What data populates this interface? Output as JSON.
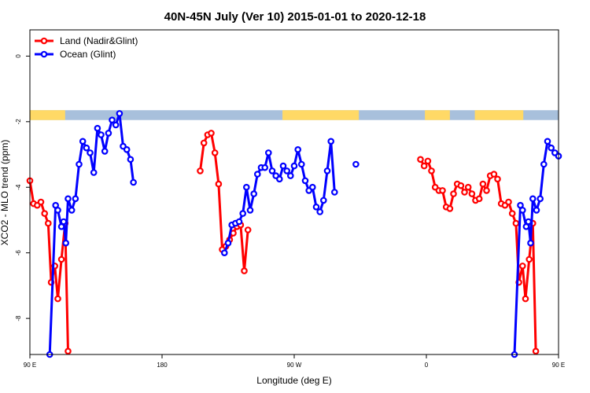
{
  "chart_data": {
    "type": "line",
    "title": "40N-45N July (Ver 10)   2015-01-01 to 2020-12-18",
    "xlabel": "Longitude (deg E)",
    "ylabel": "XCO2 - MLO trend (ppm)",
    "xlim": [
      90,
      450
    ],
    "ylim": [
      -9.1,
      0.8
    ],
    "x_ticks": [
      {
        "value": 90,
        "label": "90 E"
      },
      {
        "value": 180,
        "label": "180"
      },
      {
        "value": 270,
        "label": "90 W"
      },
      {
        "value": 360,
        "label": "0"
      },
      {
        "value": 450,
        "label": "90 E"
      },
      {
        "value": 540,
        "label": "180"
      }
    ],
    "y_ticks": [
      {
        "value": 0,
        "label": "0"
      },
      {
        "value": -2,
        "label": "-2"
      },
      {
        "value": -4,
        "label": "-4"
      },
      {
        "value": -6,
        "label": "-6"
      },
      {
        "value": -8,
        "label": "-8"
      }
    ],
    "grid": false,
    "legend_position": "top-left",
    "land_mask_band": {
      "y_range": [
        -1.65,
        -1.95
      ],
      "land_color": "#FFD966",
      "ocean_color": "#A8C0DC",
      "land_ranges": [
        [
          90,
          114
        ],
        [
          262,
          314
        ],
        [
          359,
          376
        ],
        [
          393,
          426
        ],
        [
          464,
          538
        ]
      ]
    },
    "series": [
      {
        "name": "Land (Nadir&Glint)",
        "color": "#FF0000",
        "points": [
          [
            90,
            -3.8
          ],
          [
            92.5,
            -4.5
          ],
          [
            95,
            -4.55
          ],
          [
            97.5,
            -4.45
          ],
          [
            100,
            -4.8
          ],
          [
            102.5,
            -5.1
          ],
          [
            104.5,
            -6.9
          ],
          [
            107,
            -6.4
          ],
          [
            109,
            -7.4
          ],
          [
            111.5,
            -6.2
          ],
          [
            114,
            -5.1
          ],
          [
            116,
            -9.0
          ],
          null,
          [
            206,
            -3.5
          ],
          [
            208.5,
            -2.65
          ],
          [
            211,
            -2.4
          ],
          [
            213.5,
            -2.35
          ],
          [
            216,
            -2.95
          ],
          [
            218.5,
            -3.9
          ],
          [
            221,
            -5.9
          ],
          [
            223.5,
            -5.8
          ],
          [
            226,
            -5.6
          ],
          [
            228.5,
            -5.4
          ],
          [
            231,
            -5.2
          ],
          [
            233.5,
            -5.15
          ],
          [
            236,
            -6.55
          ],
          [
            238.5,
            -5.3
          ],
          null,
          [
            356,
            -3.15
          ],
          [
            358.5,
            -3.35
          ],
          [
            361,
            -3.2
          ],
          [
            363.5,
            -3.5
          ],
          [
            366,
            -4.0
          ],
          [
            368.5,
            -4.1
          ],
          [
            371,
            -4.1
          ],
          [
            373.5,
            -4.6
          ],
          [
            376,
            -4.65
          ],
          [
            378.5,
            -4.2
          ],
          [
            381,
            -3.9
          ],
          [
            383.5,
            -3.95
          ],
          [
            386,
            -4.15
          ],
          [
            388.5,
            -4.0
          ],
          [
            391,
            -4.2
          ],
          [
            393.5,
            -4.4
          ],
          [
            396,
            -4.35
          ],
          [
            398.5,
            -3.9
          ],
          [
            401,
            -4.1
          ],
          [
            403.5,
            -3.65
          ],
          [
            406,
            -3.6
          ],
          [
            408.5,
            -3.75
          ],
          [
            411,
            -4.5
          ],
          [
            413.5,
            -4.55
          ],
          [
            416,
            -4.45
          ],
          [
            418.5,
            -4.8
          ],
          [
            421,
            -5.1
          ],
          [
            423,
            -6.9
          ],
          [
            425.5,
            -6.4
          ],
          [
            427.5,
            -7.4
          ],
          [
            430,
            -6.2
          ],
          [
            432.5,
            -5.1
          ],
          [
            434.5,
            -9.0
          ]
        ]
      },
      {
        "name": "Ocean (Glint)",
        "color": "#0000FF",
        "points": [
          [
            103.5,
            -9.1
          ],
          [
            107.5,
            -4.55
          ],
          [
            109,
            -4.7
          ],
          [
            111.5,
            -5.2
          ],
          [
            113,
            -5.05
          ],
          [
            114.5,
            -5.7
          ],
          [
            116,
            -4.35
          ],
          [
            118.5,
            -4.7
          ],
          [
            121,
            -4.35
          ],
          [
            123.5,
            -3.3
          ],
          [
            126,
            -2.6
          ],
          [
            128.5,
            -2.8
          ],
          [
            131,
            -2.95
          ],
          [
            133.5,
            -3.55
          ],
          [
            136,
            -2.2
          ],
          [
            138.5,
            -2.4
          ],
          [
            141,
            -2.9
          ],
          [
            143.5,
            -2.35
          ],
          [
            146,
            -1.95
          ],
          [
            148.5,
            -2.1
          ],
          [
            151,
            -1.75
          ],
          [
            153.5,
            -2.75
          ],
          [
            156,
            -2.85
          ],
          [
            158.5,
            -3.15
          ],
          [
            160.5,
            -3.85
          ],
          null,
          [
            222.5,
            -6.0
          ],
          [
            225,
            -5.7
          ],
          [
            227.5,
            -5.15
          ],
          [
            230,
            -5.1
          ],
          [
            232.5,
            -5.05
          ],
          [
            235,
            -4.8
          ],
          [
            237.5,
            -4.0
          ],
          [
            240,
            -4.7
          ],
          [
            242.5,
            -4.2
          ],
          [
            245,
            -3.6
          ],
          [
            247.5,
            -3.4
          ],
          [
            250,
            -3.4
          ],
          [
            252.5,
            -2.95
          ],
          [
            255,
            -3.5
          ],
          [
            257.5,
            -3.65
          ],
          [
            260,
            -3.75
          ],
          [
            262.5,
            -3.35
          ],
          [
            265,
            -3.5
          ],
          [
            267.5,
            -3.65
          ],
          [
            270,
            -3.35
          ],
          [
            272.5,
            -2.85
          ],
          [
            275,
            -3.3
          ],
          [
            277.5,
            -3.8
          ],
          [
            280,
            -4.1
          ],
          [
            282.5,
            -4.0
          ],
          [
            285,
            -4.6
          ],
          [
            287.5,
            -4.75
          ],
          [
            290,
            -4.4
          ],
          [
            292.5,
            -3.5
          ],
          [
            295,
            -2.6
          ],
          [
            297.5,
            -4.15
          ],
          null,
          [
            312,
            -3.3
          ],
          null,
          [
            420,
            -9.1
          ],
          [
            424,
            -4.55
          ],
          [
            425.5,
            -4.7
          ],
          [
            428,
            -5.2
          ],
          [
            429.5,
            -5.05
          ],
          [
            431,
            -5.7
          ],
          [
            432.5,
            -4.35
          ],
          [
            435,
            -4.7
          ],
          [
            437.5,
            -4.35
          ],
          [
            440,
            -3.3
          ],
          [
            442.5,
            -2.6
          ],
          [
            445,
            -2.8
          ],
          [
            447.5,
            -2.95
          ],
          [
            450,
            -3.05
          ]
        ]
      }
    ]
  }
}
